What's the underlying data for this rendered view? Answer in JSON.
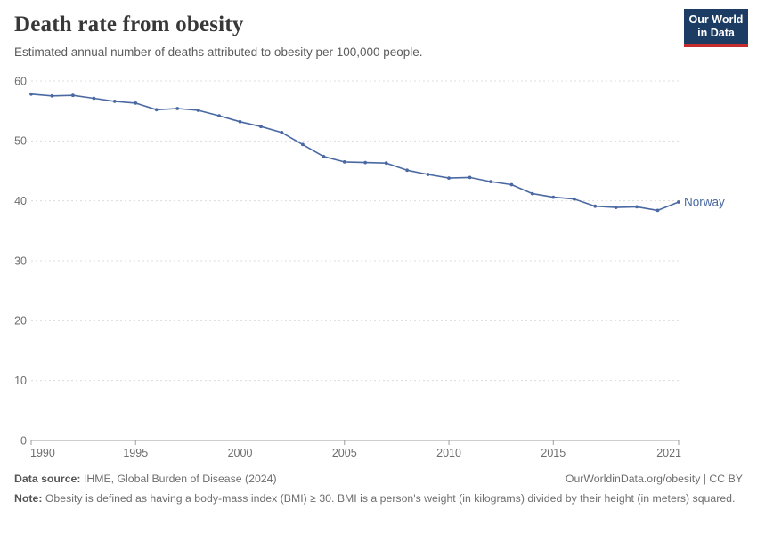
{
  "header": {
    "title": "Death rate from obesity",
    "subtitle": "Estimated annual number of deaths attributed to obesity per 100,000 people.",
    "logo_line1": "Our World",
    "logo_line2": "in Data"
  },
  "chart_data": {
    "type": "line",
    "title": "Death rate from obesity",
    "xlabel": "",
    "ylabel": "",
    "xlim": [
      1990,
      2021
    ],
    "ylim": [
      0,
      60
    ],
    "x_ticks": [
      1990,
      1995,
      2000,
      2005,
      2010,
      2015,
      2021
    ],
    "y_ticks": [
      0,
      10,
      20,
      30,
      40,
      50,
      60
    ],
    "grid": "horizontal-dashed",
    "legend_position": "end-of-line-label",
    "x": [
      1990,
      1991,
      1992,
      1993,
      1994,
      1995,
      1996,
      1997,
      1998,
      1999,
      2000,
      2001,
      2002,
      2003,
      2004,
      2005,
      2006,
      2007,
      2008,
      2009,
      2010,
      2011,
      2012,
      2013,
      2014,
      2015,
      2016,
      2017,
      2018,
      2019,
      2020,
      2021
    ],
    "series": [
      {
        "name": "Norway",
        "color": "#4a69a3",
        "values": [
          57.8,
          57.5,
          57.6,
          57.1,
          56.6,
          56.3,
          55.2,
          55.4,
          55.1,
          54.2,
          53.2,
          52.4,
          51.4,
          49.4,
          47.4,
          46.5,
          46.4,
          46.3,
          45.1,
          44.4,
          43.8,
          43.9,
          43.2,
          42.7,
          41.2,
          40.6,
          40.3,
          39.1,
          38.9,
          39.0,
          38.4,
          39.8
        ]
      }
    ]
  },
  "footer": {
    "source_label": "Data source:",
    "source_text": " IHME, Global Burden of Disease (2024)",
    "credit": "OurWorldinData.org/obesity | CC BY",
    "note_label": "Note:",
    "note_text": " Obesity is defined as having a body-mass index (BMI) ≥ 30. BMI is a person's weight (in kilograms) divided by their height (in meters) squared."
  },
  "colors": {
    "accent_line": "#4a69a3",
    "gridline": "#dcdcdc",
    "axis": "#9e9e9e",
    "tick_label": "#6e6e6e",
    "title": "#383838",
    "logo_navy": "#1d3c63",
    "logo_red": "#c42d2d"
  }
}
